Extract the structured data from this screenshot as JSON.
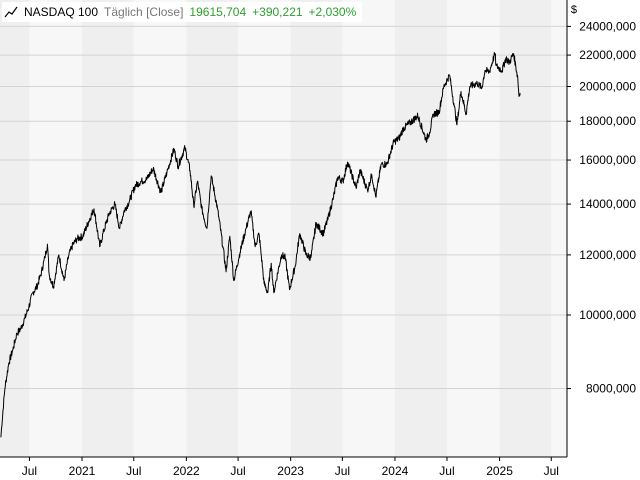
{
  "legend": {
    "name": "NASDAQ 100",
    "mode": "Täglich [Close]",
    "last": "19615,704",
    "change": "+390,221",
    "change_pct": "+2,030%"
  },
  "currency_label": "$",
  "colors": {
    "line": "#000000",
    "band_dark": "#efefef",
    "band_light": "#f7f7f7",
    "grid": "#d4d4d4",
    "positive": "#2ca02c"
  },
  "chart_data": {
    "type": "line",
    "title": "NASDAQ 100",
    "y_scale": "log",
    "ylim": [
      6500,
      26000
    ],
    "y_ticks": [
      8000,
      10000,
      12000,
      14000,
      16000,
      18000,
      20000,
      22000,
      24000
    ],
    "y_tick_labels": [
      "8000,000",
      "10000,000",
      "12000,000",
      "14000,000",
      "16000,000",
      "18000,000",
      "20000,000",
      "22000,000",
      "24000,000"
    ],
    "x_range": [
      "2020-03-20",
      "2025-08-25"
    ],
    "x_ticks": [
      "2020-07-01",
      "2021-01-01",
      "2021-07-01",
      "2022-01-01",
      "2022-07-01",
      "2023-01-01",
      "2023-07-01",
      "2024-01-01",
      "2024-07-01",
      "2025-01-01",
      "2025-07-01"
    ],
    "x_tick_labels": [
      "Jul",
      "2021",
      "Jul",
      "2022",
      "Jul",
      "2023",
      "Jul",
      "2024",
      "Jul",
      "2025",
      "Jul"
    ],
    "grid": true,
    "legend_position": "top-left",
    "series": [
      {
        "name": "NASDAQ 100",
        "points": [
          [
            "2020-03-23",
            6900
          ],
          [
            "2020-04-06",
            8000
          ],
          [
            "2020-04-20",
            8650
          ],
          [
            "2020-05-04",
            9000
          ],
          [
            "2020-05-18",
            9450
          ],
          [
            "2020-06-01",
            9600
          ],
          [
            "2020-06-15",
            9900
          ],
          [
            "2020-06-29",
            10250
          ],
          [
            "2020-07-13",
            10700
          ],
          [
            "2020-07-27",
            10900
          ],
          [
            "2020-08-10",
            11300
          ],
          [
            "2020-08-24",
            11900
          ],
          [
            "2020-09-02",
            12400
          ],
          [
            "2020-09-08",
            11300
          ],
          [
            "2020-09-23",
            10900
          ],
          [
            "2020-10-12",
            12000
          ],
          [
            "2020-10-30",
            11100
          ],
          [
            "2020-11-16",
            12000
          ],
          [
            "2020-12-01",
            12400
          ],
          [
            "2020-12-15",
            12600
          ],
          [
            "2021-01-04",
            12700
          ],
          [
            "2021-01-25",
            13300
          ],
          [
            "2021-02-12",
            13800
          ],
          [
            "2021-03-04",
            12300
          ],
          [
            "2021-03-18",
            12900
          ],
          [
            "2021-04-06",
            13600
          ],
          [
            "2021-04-26",
            14000
          ],
          [
            "2021-05-12",
            13000
          ],
          [
            "2021-05-28",
            13700
          ],
          [
            "2021-06-15",
            14100
          ],
          [
            "2021-07-06",
            14800
          ],
          [
            "2021-07-27",
            15000
          ],
          [
            "2021-08-16",
            15100
          ],
          [
            "2021-09-07",
            15600
          ],
          [
            "2021-10-04",
            14500
          ],
          [
            "2021-10-25",
            15400
          ],
          [
            "2021-11-19",
            16550
          ],
          [
            "2021-12-03",
            15700
          ],
          [
            "2021-12-27",
            16600
          ],
          [
            "2022-01-14",
            15500
          ],
          [
            "2022-01-27",
            13900
          ],
          [
            "2022-02-09",
            15000
          ],
          [
            "2022-02-24",
            13800
          ],
          [
            "2022-03-14",
            13000
          ],
          [
            "2022-03-29",
            15250
          ],
          [
            "2022-04-20",
            13800
          ],
          [
            "2022-05-09",
            12300
          ],
          [
            "2022-05-20",
            11400
          ],
          [
            "2022-06-02",
            12700
          ],
          [
            "2022-06-16",
            11100
          ],
          [
            "2022-07-08",
            12100
          ],
          [
            "2022-07-29",
            13000
          ],
          [
            "2022-08-15",
            13700
          ],
          [
            "2022-08-30",
            12300
          ],
          [
            "2022-09-12",
            12800
          ],
          [
            "2022-09-30",
            11000
          ],
          [
            "2022-10-13",
            10700
          ],
          [
            "2022-10-25",
            11700
          ],
          [
            "2022-11-03",
            10700
          ],
          [
            "2022-11-30",
            12000
          ],
          [
            "2022-12-13",
            11900
          ],
          [
            "2022-12-28",
            10800
          ],
          [
            "2023-01-17",
            11600
          ],
          [
            "2023-02-02",
            12800
          ],
          [
            "2023-02-24",
            12000
          ],
          [
            "2023-03-13",
            11900
          ],
          [
            "2023-03-31",
            13200
          ],
          [
            "2023-04-25",
            12800
          ],
          [
            "2023-05-12",
            13400
          ],
          [
            "2023-05-31",
            14300
          ],
          [
            "2023-06-15",
            15200
          ],
          [
            "2023-07-03",
            15000
          ],
          [
            "2023-07-19",
            15900
          ],
          [
            "2023-08-18",
            14700
          ],
          [
            "2023-09-01",
            15500
          ],
          [
            "2023-09-27",
            14600
          ],
          [
            "2023-10-12",
            15300
          ],
          [
            "2023-10-26",
            14300
          ],
          [
            "2023-11-14",
            15800
          ],
          [
            "2023-12-04",
            15800
          ],
          [
            "2023-12-28",
            16900
          ],
          [
            "2024-01-16",
            17100
          ],
          [
            "2024-01-30",
            17600
          ],
          [
            "2024-02-22",
            17900
          ],
          [
            "2024-03-21",
            18300
          ],
          [
            "2024-04-19",
            17000
          ],
          [
            "2024-05-01",
            17400
          ],
          [
            "2024-05-15",
            18400
          ],
          [
            "2024-06-03",
            18500
          ],
          [
            "2024-06-20",
            20000
          ],
          [
            "2024-07-10",
            20700
          ],
          [
            "2024-07-25",
            19000
          ],
          [
            "2024-08-05",
            17800
          ],
          [
            "2024-08-19",
            19700
          ],
          [
            "2024-09-06",
            18400
          ],
          [
            "2024-09-19",
            20000
          ],
          [
            "2024-10-15",
            20200
          ],
          [
            "2024-10-31",
            19900
          ],
          [
            "2024-11-11",
            21000
          ],
          [
            "2024-11-26",
            20900
          ],
          [
            "2024-12-16",
            22100
          ],
          [
            "2024-12-20",
            21300
          ],
          [
            "2025-01-10",
            21000
          ],
          [
            "2025-01-23",
            21800
          ],
          [
            "2025-02-04",
            21500
          ],
          [
            "2025-02-19",
            22100
          ],
          [
            "2025-03-06",
            20500
          ],
          [
            "2025-03-10",
            19400
          ],
          [
            "2025-03-14",
            19616
          ]
        ]
      }
    ]
  }
}
